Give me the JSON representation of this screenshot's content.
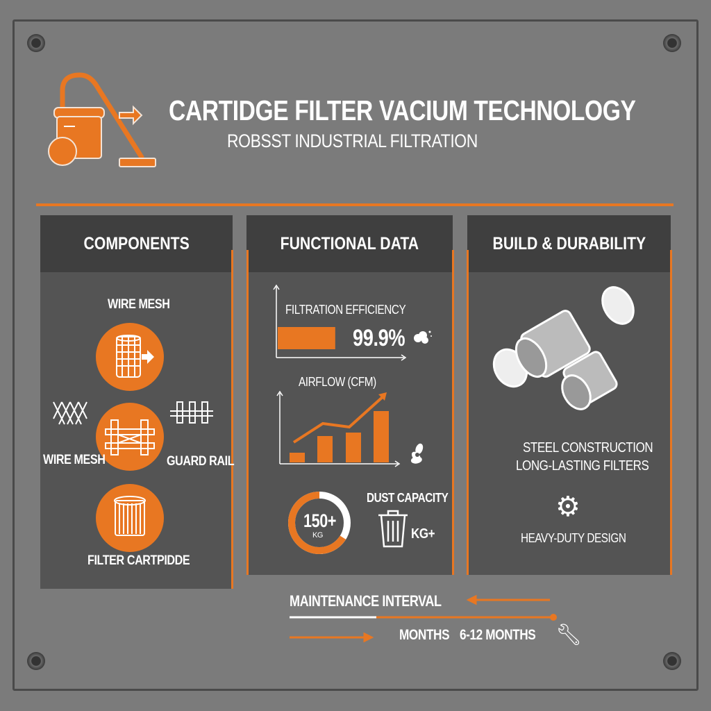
{
  "header": {
    "title": "CARTIDGE FILTER VACIUM TECHNOLOGY",
    "subtitle": "ROBSST INDUSTRIAL FILTRATION"
  },
  "colors": {
    "accent": "#e87722",
    "background": "#7b7b7b",
    "panel": "#545454",
    "panel_header": "#3f3f3f"
  },
  "components": {
    "title": "COMPONENTS",
    "top_label": "WIRE MESH",
    "left_label": "WIRE MESH",
    "right_label": "GUARD RAIL",
    "bottom_label": "FILTER CARTPIDDE"
  },
  "functional": {
    "title": "FUNCTIONAL DATA",
    "efficiency": {
      "label": "FILTRATION EFFICIENCY",
      "value": "99.9%",
      "fill_fraction": 0.46
    },
    "airflow": {
      "label": "AIRFLOW (CFM)",
      "bars": [
        14,
        38,
        43,
        74
      ]
    },
    "dust": {
      "label": "DUST CAPACITY",
      "ring_value": "150+",
      "ring_unit": "KG",
      "unit": "KG+",
      "ring_fill_fraction": 0.66
    }
  },
  "build": {
    "title": "BUILD & DURABILITY",
    "line1": "STEEL CONSTRUCTION",
    "line2": "LONG-LASTING FILTERS",
    "line3": "HEAVY-DUTY DESIGN"
  },
  "maintenance": {
    "label": "MAINTENANCE INTERVAL",
    "months": "MONTHS",
    "range": "6-12 MONTHS",
    "progress_fraction": 0.33
  }
}
